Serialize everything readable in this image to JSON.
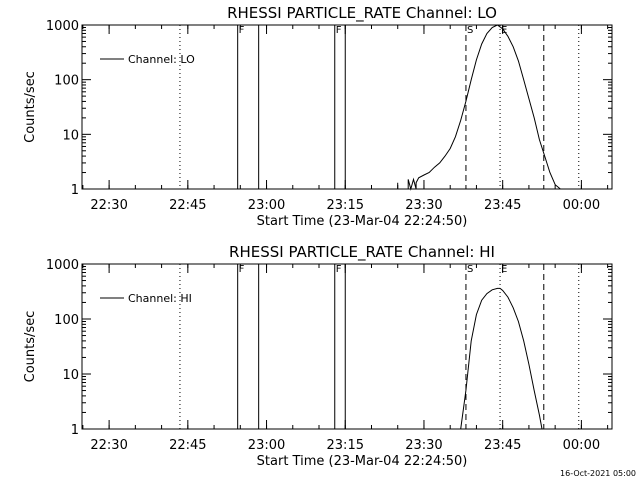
{
  "chart_data": [
    {
      "type": "line",
      "title": "RHESSI PARTICLE_RATE Channel: LO",
      "xlabel": "Start Time (23-Mar-04 22:24:50)",
      "ylabel": "Counts/sec",
      "yscale": "log",
      "ylim": [
        1,
        1000
      ],
      "xlim": [
        "22:24:50",
        "00:05:50"
      ],
      "xticks": [
        "22:30",
        "22:45",
        "23:00",
        "23:15",
        "23:30",
        "23:45",
        "00:00"
      ],
      "yticks": [
        "1",
        "10",
        "100",
        "1000"
      ],
      "grid": false,
      "legend_position": "top-left",
      "series": [
        {
          "name": "Channel: LO",
          "x": [
            "23:25:00",
            "23:25:00",
            "23:25:00",
            "23:27:00",
            "23:27:00",
            "23:27:30",
            "23:28:00",
            "23:28:30",
            "23:28:30",
            "23:29:00",
            "23:30:00",
            "23:31:00",
            "23:32:00",
            "23:33:00",
            "23:34:00",
            "23:35:00",
            "23:36:00",
            "23:37:00",
            "23:38:00",
            "23:39:00",
            "23:40:00",
            "23:41:00",
            "23:42:00",
            "23:43:00",
            "23:44:00",
            "23:45:00",
            "23:46:00",
            "23:47:00",
            "23:48:00",
            "23:49:00",
            "23:50:00",
            "23:51:00",
            "23:52:00",
            "23:53:00",
            "23:54:00",
            "23:55:00",
            "23:56:00"
          ],
          "values": [
            1.0,
            1.3,
            1.0,
            1.0,
            1.5,
            1.0,
            1.5,
            1.0,
            1.3,
            1.6,
            1.8,
            2.0,
            2.5,
            3.0,
            4.0,
            5.5,
            9.0,
            18,
            40,
            100,
            230,
            450,
            700,
            900,
            1000,
            850,
            620,
            400,
            220,
            100,
            45,
            20,
            8,
            4,
            2,
            1.2,
            1.0
          ]
        }
      ],
      "vlines_solid": [
        "22:54:30",
        "22:58:30",
        "23:13:00",
        "23:15:00"
      ],
      "vlines_dashed": [
        "23:38:00",
        "23:52:50"
      ],
      "vlines_dotted": [
        "22:43:30",
        "23:44:30",
        "23:59:30"
      ],
      "markers": [
        {
          "label": "F",
          "x": "22:54:30"
        },
        {
          "label": "F",
          "x": "23:13:00"
        },
        {
          "label": "S",
          "x": "23:38:00"
        },
        {
          "label": "E",
          "x": "23:44:30"
        }
      ]
    },
    {
      "type": "line",
      "title": "RHESSI PARTICLE_RATE Channel: HI",
      "xlabel": "Start Time (23-Mar-04 22:24:50)",
      "ylabel": "Counts/sec",
      "yscale": "log",
      "ylim": [
        1,
        1000
      ],
      "xlim": [
        "22:24:50",
        "00:05:50"
      ],
      "xticks": [
        "22:30",
        "22:45",
        "23:00",
        "23:15",
        "23:30",
        "23:45",
        "00:00"
      ],
      "yticks": [
        "1",
        "10",
        "100",
        "1000"
      ],
      "grid": false,
      "legend_position": "top-left",
      "series": [
        {
          "name": "Channel: HI",
          "x": [
            "23:37:00",
            "23:38:00",
            "23:39:00",
            "23:40:00",
            "23:41:00",
            "23:42:00",
            "23:43:00",
            "23:44:00",
            "23:44:30",
            "23:45:00",
            "23:46:00",
            "23:47:00",
            "23:48:00",
            "23:49:00",
            "23:50:00",
            "23:51:00",
            "23:52:00",
            "23:52:30"
          ],
          "values": [
            1.0,
            5.0,
            40,
            120,
            220,
            290,
            340,
            360,
            360,
            330,
            250,
            160,
            90,
            40,
            15,
            5,
            1.8,
            1.0
          ]
        }
      ],
      "vlines_solid": [
        "22:54:30",
        "22:58:30",
        "23:13:00",
        "23:15:00"
      ],
      "vlines_dashed": [
        "23:38:00",
        "23:52:50"
      ],
      "vlines_dotted": [
        "22:43:30",
        "23:44:30",
        "23:59:30"
      ],
      "markers": [
        {
          "label": "F",
          "x": "22:54:30"
        },
        {
          "label": "F",
          "x": "23:13:00"
        },
        {
          "label": "S",
          "x": "23:38:00"
        },
        {
          "label": "E",
          "x": "23:44:30"
        }
      ]
    }
  ],
  "footer_stamp": "16-Oct-2021 05:00"
}
